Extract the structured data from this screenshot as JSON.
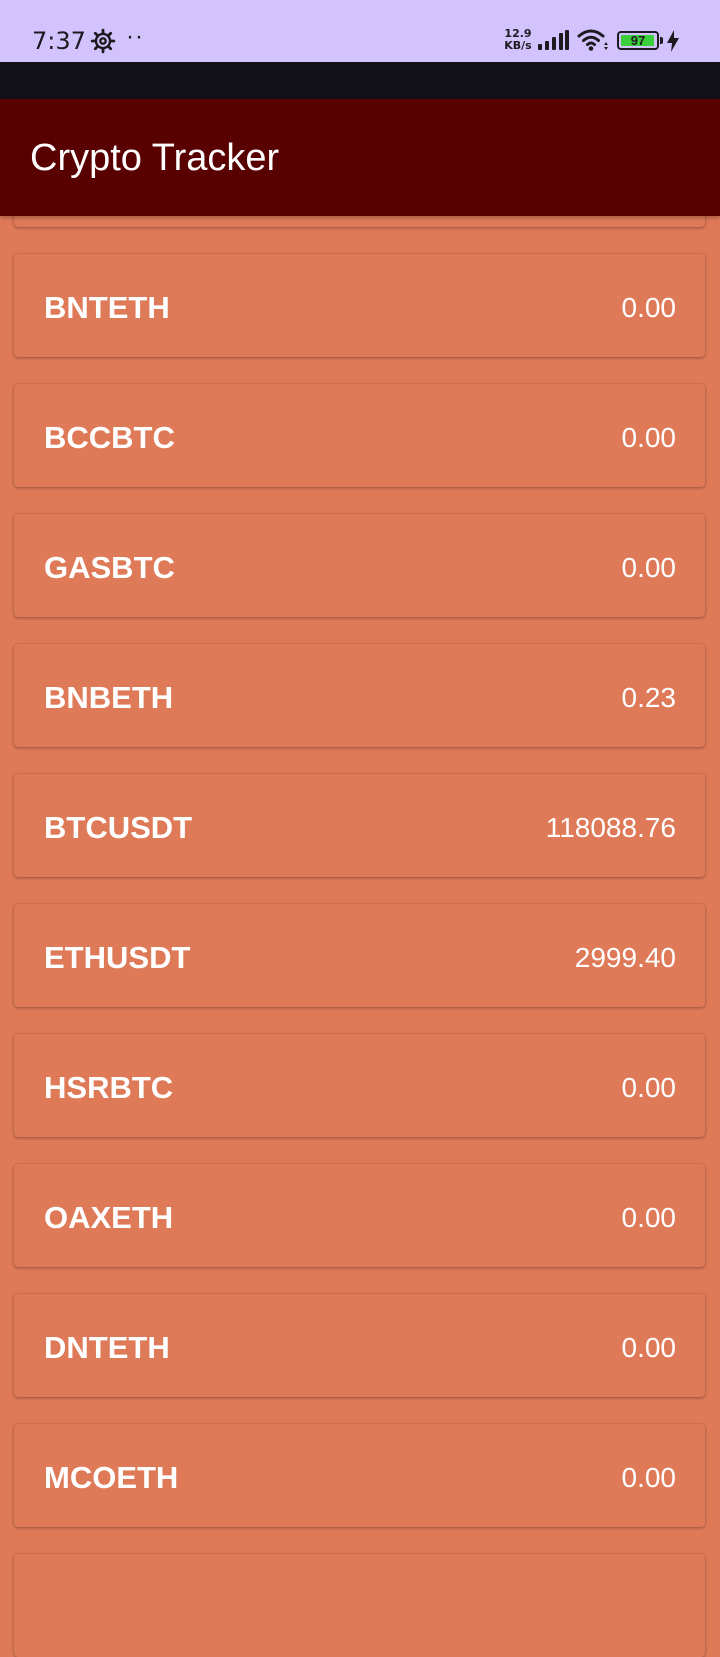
{
  "status_bar": {
    "time": "7:37",
    "dots": "··",
    "speed_value": "12.9",
    "speed_unit": "KB/s",
    "battery_level": "97",
    "battery_fraction": 0.97,
    "icons": [
      "settings-gear-icon",
      "signal-strength-icon",
      "wifi-icon",
      "battery-icon",
      "charging-bolt-icon"
    ]
  },
  "app_bar": {
    "title": "Crypto Tracker",
    "background": "#590000"
  },
  "list": {
    "card_color": "#df7a59",
    "items": [
      {
        "symbol": "",
        "price": ""
      },
      {
        "symbol": "BNTETH",
        "price": "0.00"
      },
      {
        "symbol": "BCCBTC",
        "price": "0.00"
      },
      {
        "symbol": "GASBTC",
        "price": "0.00"
      },
      {
        "symbol": "BNBETH",
        "price": "0.23"
      },
      {
        "symbol": "BTCUSDT",
        "price": "118088.76"
      },
      {
        "symbol": "ETHUSDT",
        "price": "2999.40"
      },
      {
        "symbol": "HSRBTC",
        "price": "0.00"
      },
      {
        "symbol": "OAXETH",
        "price": "0.00"
      },
      {
        "symbol": "DNTETH",
        "price": "0.00"
      },
      {
        "symbol": "MCOETH",
        "price": "0.00"
      },
      {
        "symbol": "",
        "price": ""
      }
    ]
  }
}
